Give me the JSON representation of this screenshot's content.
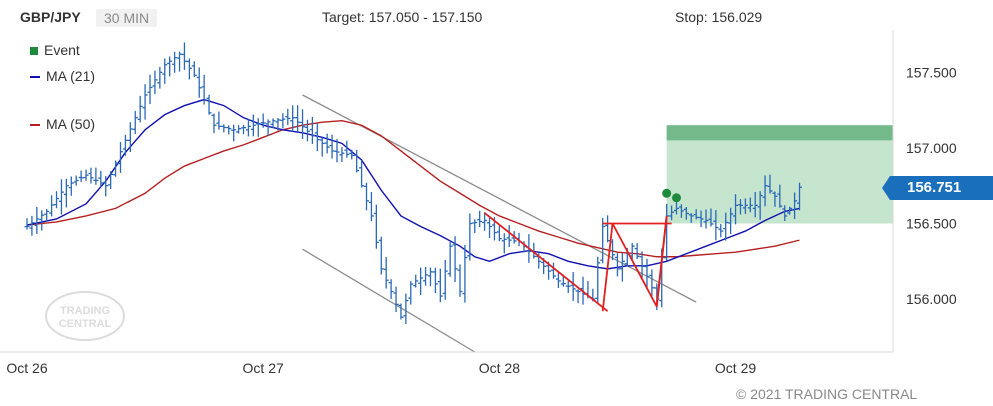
{
  "header": {
    "symbol": "GBP/JPY",
    "timeframe": "30 MIN",
    "target": "Target: 157.050 - 157.150",
    "stop": "Stop: 156.029"
  },
  "legend": {
    "event_label": "Event",
    "ma21_label": "MA (21)",
    "ma50_label": "MA (50)"
  },
  "colors": {
    "candle": "#2a68b8",
    "ma21": "#1010b0",
    "ma50": "#b52020",
    "event": "#1e8a3c",
    "target_zone": "#9ed4ae",
    "channel": "#8c8c8c",
    "pattern": "#e2201f",
    "price_tag": "#1a6fbd"
  },
  "current_price": "156.751",
  "copyright": "© 2021 TRADING CENTRAL",
  "logo": {
    "line1": "TRADING",
    "line2": "CENTRAL"
  },
  "chart_data": {
    "type": "line",
    "symbol": "GBP/JPY",
    "interval": "30 MIN",
    "x_range": [
      0,
      176
    ],
    "y_range": [
      155.65,
      157.78
    ],
    "x_ticks": [
      {
        "label": "Oct 26",
        "x": 0
      },
      {
        "label": "Oct 27",
        "x": 48
      },
      {
        "label": "Oct 28",
        "x": 96
      },
      {
        "label": "Oct 29",
        "x": 144
      }
    ],
    "y_ticks": [
      {
        "label": "157.500",
        "value": 157.5
      },
      {
        "label": "157.000",
        "value": 157.0
      },
      {
        "label": "156.500",
        "value": 156.5
      },
      {
        "label": "156.000",
        "value": 156.0
      }
    ],
    "close_anchors": [
      [
        0,
        156.48
      ],
      [
        4,
        156.58
      ],
      [
        8,
        156.75
      ],
      [
        12,
        156.82
      ],
      [
        16,
        156.75
      ],
      [
        20,
        157.05
      ],
      [
        24,
        157.35
      ],
      [
        28,
        157.55
      ],
      [
        31,
        157.62
      ],
      [
        34,
        157.48
      ],
      [
        38,
        157.15
      ],
      [
        42,
        157.12
      ],
      [
        46,
        157.15
      ],
      [
        50,
        157.18
      ],
      [
        54,
        157.2
      ],
      [
        58,
        157.08
      ],
      [
        62,
        156.98
      ],
      [
        66,
        156.95
      ],
      [
        70,
        156.55
      ],
      [
        72,
        156.2
      ],
      [
        74,
        156.05
      ],
      [
        76,
        155.88
      ],
      [
        78,
        156.1
      ],
      [
        82,
        156.18
      ],
      [
        84,
        156.02
      ],
      [
        86,
        156.35
      ],
      [
        88,
        156.05
      ],
      [
        90,
        156.5
      ],
      [
        93,
        156.52
      ],
      [
        96,
        156.4
      ],
      [
        100,
        156.38
      ],
      [
        104,
        156.25
      ],
      [
        108,
        156.12
      ],
      [
        112,
        156.05
      ],
      [
        115,
        156.0
      ],
      [
        117,
        156.48
      ],
      [
        120,
        156.2
      ],
      [
        123,
        156.35
      ],
      [
        126,
        156.15
      ],
      [
        128,
        156.0
      ],
      [
        130,
        156.55
      ],
      [
        132,
        156.6
      ],
      [
        135,
        156.55
      ],
      [
        138,
        156.52
      ],
      [
        141,
        156.45
      ],
      [
        144,
        156.62
      ],
      [
        148,
        156.62
      ],
      [
        150,
        156.75
      ],
      [
        152,
        156.68
      ],
      [
        154,
        156.55
      ],
      [
        156,
        156.65
      ],
      [
        157,
        156.74
      ]
    ],
    "ma21": [
      [
        0,
        156.49
      ],
      [
        6,
        156.53
      ],
      [
        12,
        156.63
      ],
      [
        16,
        156.78
      ],
      [
        20,
        156.97
      ],
      [
        24,
        157.12
      ],
      [
        28,
        157.22
      ],
      [
        32,
        157.28
      ],
      [
        36,
        157.32
      ],
      [
        40,
        157.28
      ],
      [
        44,
        157.2
      ],
      [
        48,
        157.15
      ],
      [
        52,
        157.12
      ],
      [
        56,
        157.1
      ],
      [
        60,
        157.07
      ],
      [
        64,
        157.03
      ],
      [
        68,
        156.92
      ],
      [
        72,
        156.72
      ],
      [
        76,
        156.55
      ],
      [
        80,
        156.48
      ],
      [
        84,
        156.42
      ],
      [
        88,
        156.35
      ],
      [
        91,
        156.28
      ],
      [
        94,
        156.25
      ],
      [
        98,
        156.3
      ],
      [
        102,
        156.32
      ],
      [
        106,
        156.3
      ],
      [
        110,
        156.25
      ],
      [
        114,
        156.22
      ],
      [
        118,
        156.2
      ],
      [
        122,
        156.22
      ],
      [
        126,
        156.22
      ],
      [
        130,
        156.25
      ],
      [
        134,
        156.3
      ],
      [
        138,
        156.35
      ],
      [
        142,
        156.4
      ],
      [
        146,
        156.45
      ],
      [
        150,
        156.52
      ],
      [
        154,
        156.58
      ],
      [
        157,
        156.6
      ]
    ],
    "ma50": [
      [
        0,
        156.49
      ],
      [
        6,
        156.51
      ],
      [
        12,
        156.55
      ],
      [
        18,
        156.6
      ],
      [
        24,
        156.7
      ],
      [
        28,
        156.8
      ],
      [
        32,
        156.88
      ],
      [
        36,
        156.93
      ],
      [
        40,
        156.98
      ],
      [
        44,
        157.02
      ],
      [
        48,
        157.07
      ],
      [
        52,
        157.12
      ],
      [
        56,
        157.15
      ],
      [
        60,
        157.17
      ],
      [
        64,
        157.18
      ],
      [
        68,
        157.15
      ],
      [
        72,
        157.08
      ],
      [
        76,
        156.98
      ],
      [
        80,
        156.88
      ],
      [
        84,
        156.78
      ],
      [
        88,
        156.7
      ],
      [
        92,
        156.62
      ],
      [
        96,
        156.55
      ],
      [
        100,
        156.5
      ],
      [
        104,
        156.45
      ],
      [
        108,
        156.41
      ],
      [
        112,
        156.37
      ],
      [
        116,
        156.34
      ],
      [
        120,
        156.31
      ],
      [
        124,
        156.3
      ],
      [
        128,
        156.28
      ],
      [
        132,
        156.28
      ],
      [
        136,
        156.29
      ],
      [
        140,
        156.3
      ],
      [
        144,
        156.31
      ],
      [
        148,
        156.33
      ],
      [
        152,
        156.35
      ],
      [
        157,
        156.39
      ]
    ],
    "channel_upper": [
      [
        56,
        157.35
      ],
      [
        136,
        155.98
      ]
    ],
    "channel_lower": [
      [
        56,
        156.33
      ],
      [
        91,
        155.65
      ]
    ],
    "pattern_lines": [
      [
        [
          93,
          156.57
        ],
        [
          118,
          155.92
        ]
      ],
      [
        [
          117,
          156.5
        ],
        [
          131,
          156.5
        ]
      ],
      [
        [
          117,
          155.92
        ],
        [
          119,
          156.5
        ]
      ],
      [
        [
          119,
          156.5
        ],
        [
          128,
          155.95
        ]
      ],
      [
        [
          128,
          155.95
        ],
        [
          130,
          156.55
        ]
      ],
      [
        [
          130,
          156.55
        ],
        [
          128,
          155.97
        ]
      ]
    ],
    "events": [
      [
        130,
        156.7
      ],
      [
        132,
        156.67
      ]
    ],
    "target_zone": {
      "x": [
        130,
        176
      ],
      "low": 156.5,
      "high": 157.15,
      "band_low": 157.05
    },
    "last_price": 156.751
  }
}
